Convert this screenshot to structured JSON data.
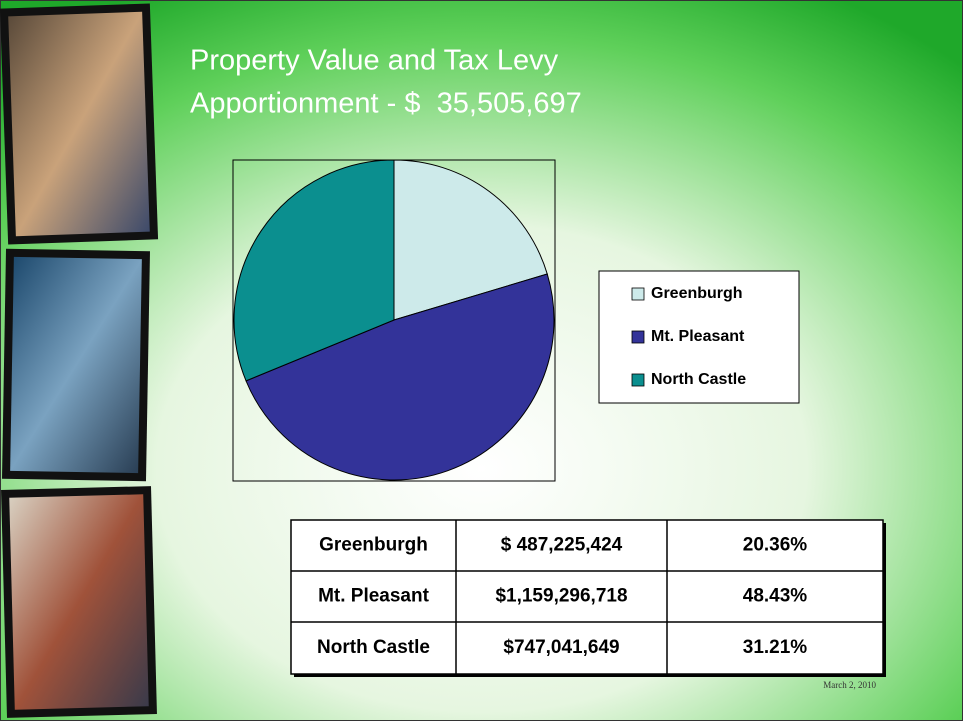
{
  "slide": {
    "title": [
      "Property Value and Tax Levy",
      "Apportionment - $  35,505,697"
    ],
    "date": "March 2, 2010"
  },
  "chart_data": {
    "type": "pie",
    "categories": [
      "Greenburgh",
      "Mt. Pleasant",
      "North Castle"
    ],
    "values": [
      20.36,
      48.43,
      31.21
    ],
    "colors": [
      "#cdeaea",
      "#333399",
      "#0b8f8f"
    ],
    "legend": "right"
  },
  "table": {
    "rows": [
      [
        "Greenburgh",
        "$ 487,225,424",
        "20.36%"
      ],
      [
        "Mt. Pleasant",
        "$1,159,296,718",
        "48.43%"
      ],
      [
        "North Castle",
        "$747,041,649",
        "31.21%"
      ]
    ]
  }
}
